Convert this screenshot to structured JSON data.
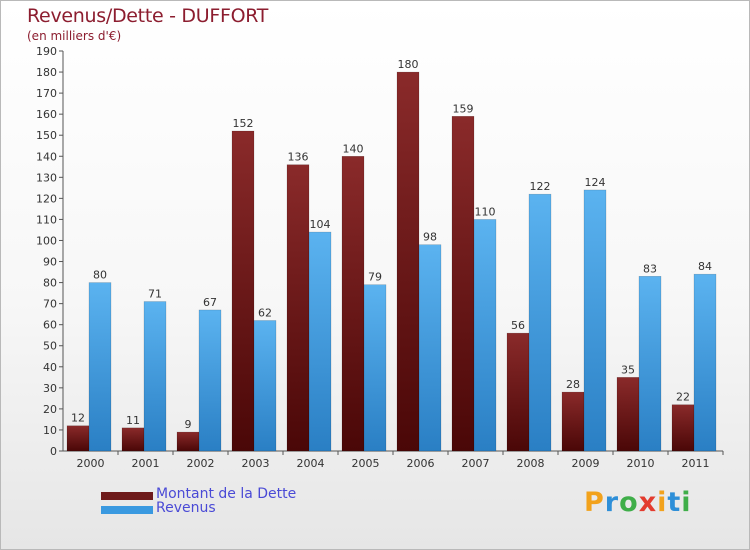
{
  "chart_data": {
    "type": "bar",
    "title": "Revenus/Dette - DUFFORT",
    "subtitle": "(en milliers d'€)",
    "categories": [
      "2000",
      "2001",
      "2002",
      "2003",
      "2004",
      "2005",
      "2006",
      "2007",
      "2008",
      "2009",
      "2010",
      "2011"
    ],
    "series": [
      {
        "name": "Montant de la Dette",
        "color": "#6e1a1a",
        "values": [
          12,
          11,
          9,
          152,
          136,
          140,
          180,
          159,
          56,
          28,
          35,
          22
        ]
      },
      {
        "name": "Revenus",
        "color": "#3a99e0",
        "values": [
          80,
          71,
          67,
          62,
          104,
          79,
          98,
          110,
          122,
          124,
          83,
          84
        ]
      }
    ],
    "ylim": [
      0,
      190
    ],
    "ytick_step": 10,
    "xlabel": "",
    "ylabel": "",
    "grid": false,
    "legend": "bottom-left"
  },
  "brand": {
    "letters": [
      "P",
      "r",
      "o",
      "x",
      "i",
      "t",
      "i"
    ],
    "colors": [
      "#f2a21c",
      "#2e8fd8",
      "#3fae49",
      "#e33b2e",
      "#f2a21c",
      "#2e8fd8",
      "#3fae49"
    ]
  }
}
